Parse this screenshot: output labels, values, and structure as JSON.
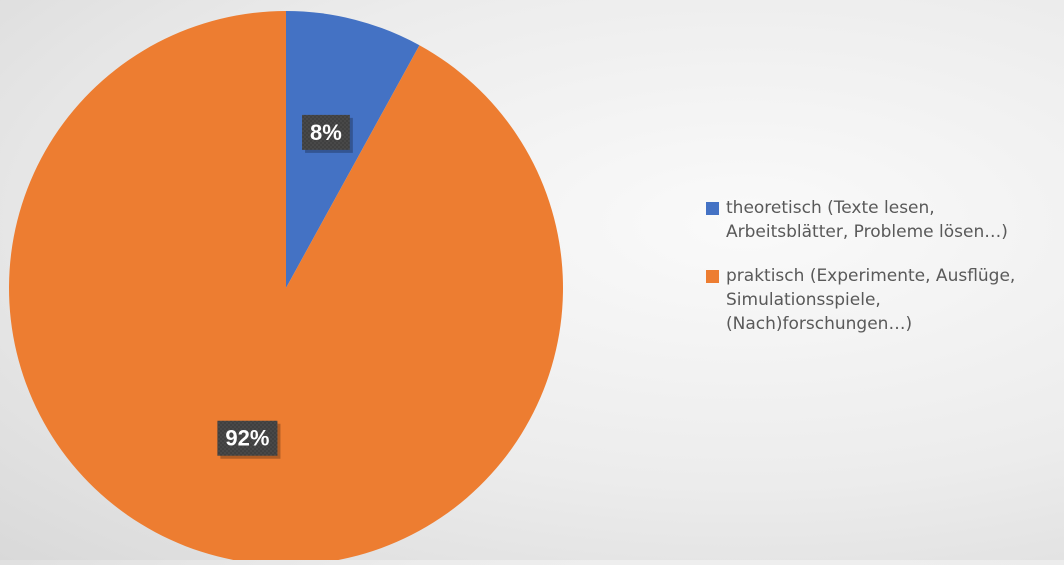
{
  "chart_data": {
    "type": "pie",
    "title": "",
    "start_angle_deg": 0,
    "direction": "clockwise",
    "slices": [
      {
        "label": "theoretisch (Texte lesen,\nArbeitsblätter, Probleme lösen…)",
        "value": 8,
        "display": "8%",
        "color": "#4472C4"
      },
      {
        "label": "praktisch (Experimente, Ausflüge,\nSimulationsspiele,\n(Nach)forschungen…)",
        "value": 92,
        "display": "92%",
        "color": "#ED7D31"
      }
    ],
    "legend": {
      "position": "right"
    },
    "data_label_box_color": "#404040"
  }
}
